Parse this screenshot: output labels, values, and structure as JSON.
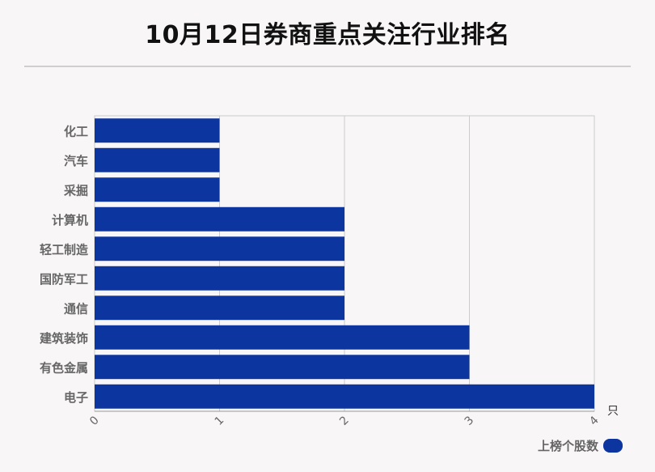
{
  "title": "10月12日券商重点关注行业排名",
  "chart_data": {
    "type": "bar",
    "orientation": "horizontal",
    "categories": [
      "化工",
      "汽车",
      "采掘",
      "计算机",
      "轻工制造",
      "国防军工",
      "通信",
      "建筑装饰",
      "有色金属",
      "电子"
    ],
    "series": [
      {
        "name": "上榜个股数",
        "values": [
          1,
          1,
          1,
          2,
          2,
          2,
          2,
          3,
          3,
          4
        ]
      }
    ],
    "xlim": [
      0,
      4
    ],
    "xticks": [
      "0",
      "1",
      "2",
      "3",
      "4"
    ],
    "xunit": "只",
    "grid": true,
    "legend_position": "bottom-right",
    "bar_color": "#0d35a0"
  }
}
